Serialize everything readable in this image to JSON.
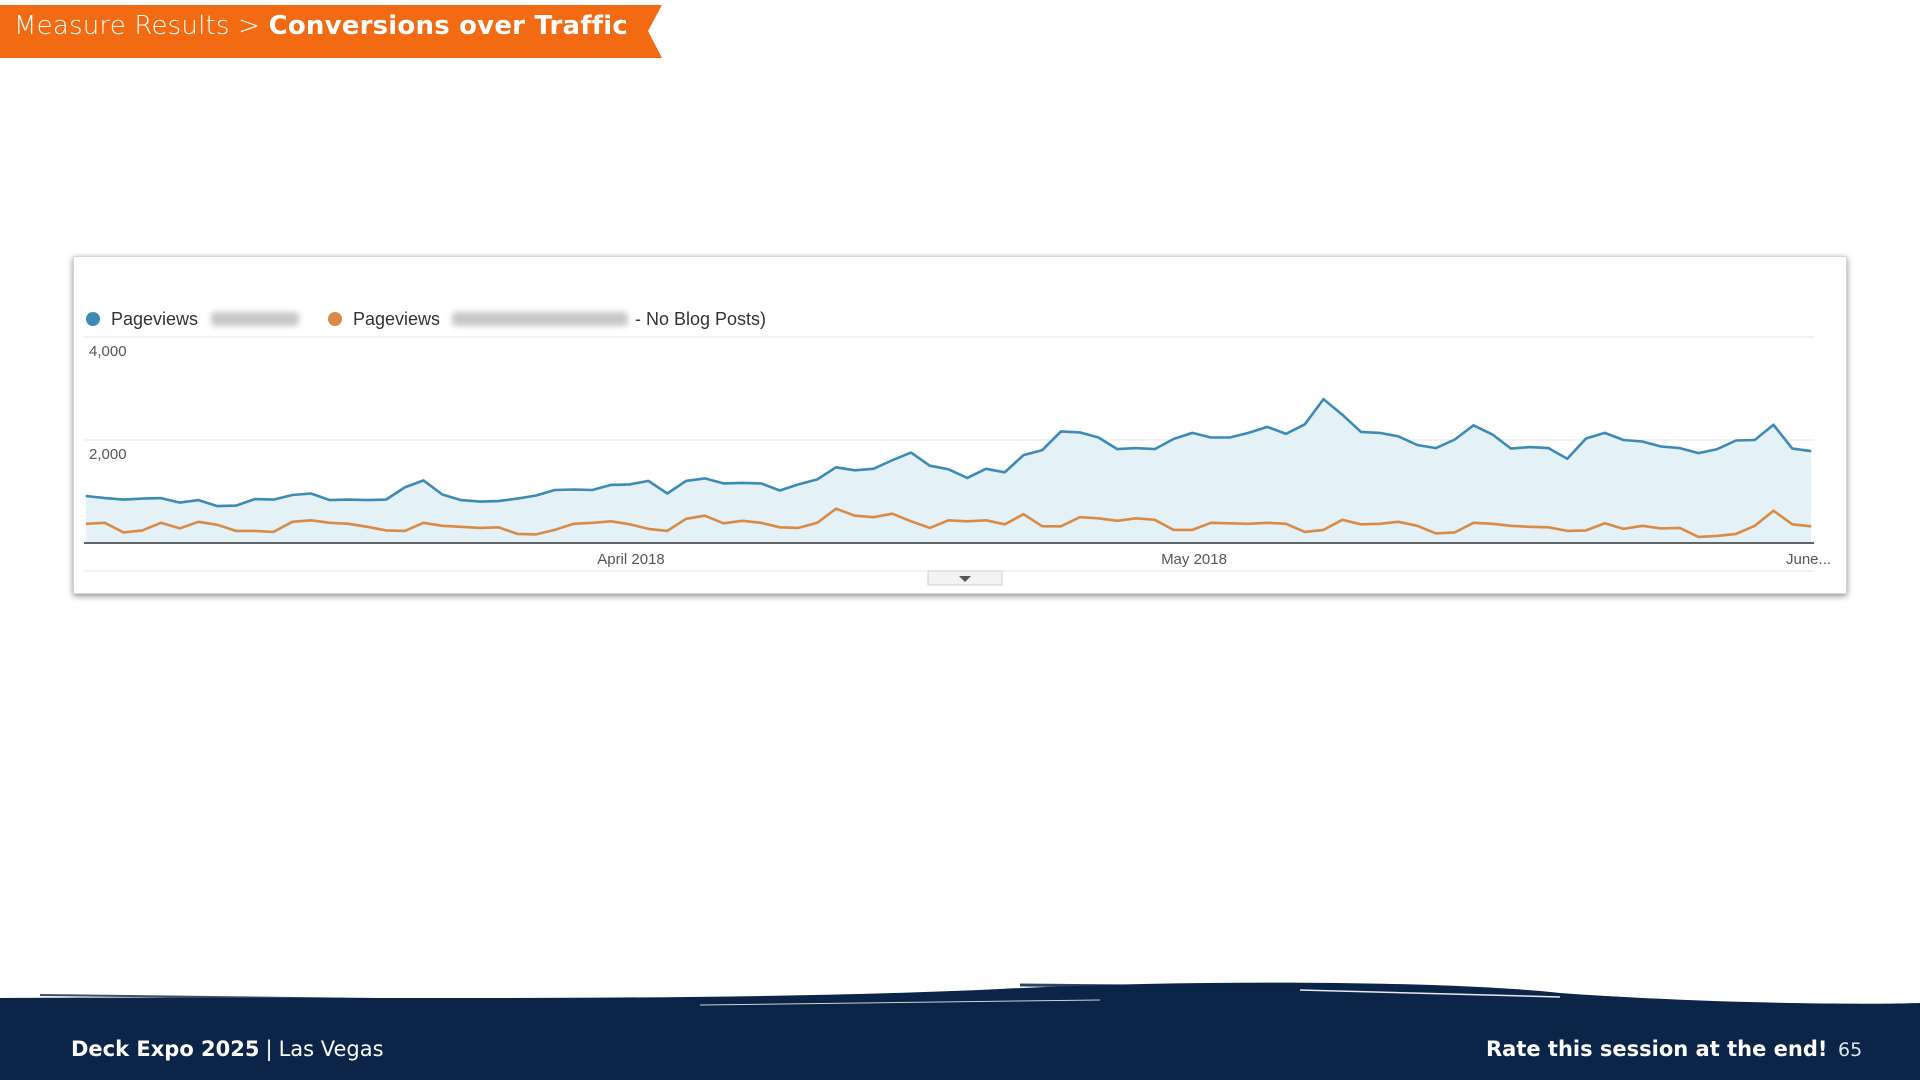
{
  "header": {
    "breadcrumb": "Measure Results >",
    "title": "Conversions over Traffic",
    "banner_color": "#f26b12"
  },
  "chart_data": {
    "type": "area",
    "legend": [
      {
        "label": "Pageviews",
        "suffix": "",
        "color": "#3d8ab5"
      },
      {
        "label": "Pageviews",
        "suffix": "- No Blog Posts)",
        "color": "#d98a45"
      }
    ],
    "y_ticks": [
      "4,000",
      "2,000"
    ],
    "x_ticks": [
      "April 2018",
      "May 2018",
      "June..."
    ],
    "ylim": [
      0,
      4000
    ],
    "grid": true,
    "series": [
      {
        "name": "Pageviews",
        "color": "#3d8ab5",
        "fill": "#e4f1f7",
        "values": [
          930,
          890,
          860,
          880,
          890,
          800,
          850,
          730,
          740,
          870,
          860,
          950,
          980,
          850,
          860,
          850,
          860,
          1100,
          1240,
          960,
          850,
          820,
          830,
          880,
          940,
          1050,
          1060,
          1050,
          1150,
          1160,
          1230,
          980,
          1230,
          1280,
          1180,
          1190,
          1180,
          1040,
          1160,
          1260,
          1500,
          1440,
          1470,
          1640,
          1790,
          1530,
          1460,
          1290,
          1470,
          1400,
          1740,
          1840,
          2210,
          2190,
          2090,
          1860,
          1880,
          1860,
          2060,
          2180,
          2090,
          2090,
          2180,
          2300,
          2160,
          2350,
          2850,
          2540,
          2200,
          2180,
          2110,
          1940,
          1880,
          2050,
          2330,
          2150,
          1870,
          1900,
          1880,
          1670,
          2070,
          2180,
          2040,
          2010,
          1910,
          1880,
          1780,
          1860,
          2030,
          2040,
          2340,
          1870,
          1820
        ]
      },
      {
        "name": "Pageviews - No Blog Posts)",
        "color": "#d98a45",
        "values": [
          380,
          400,
          210,
          250,
          400,
          290,
          420,
          360,
          240,
          240,
          220,
          420,
          450,
          400,
          380,
          320,
          250,
          240,
          400,
          340,
          320,
          300,
          310,
          180,
          170,
          260,
          380,
          400,
          430,
          370,
          280,
          240,
          480,
          540,
          390,
          440,
          400,
          310,
          300,
          400,
          680,
          540,
          510,
          580,
          430,
          300,
          450,
          430,
          450,
          370,
          570,
          330,
          330,
          510,
          490,
          440,
          490,
          460,
          260,
          260,
          400,
          390,
          380,
          400,
          380,
          220,
          260,
          460,
          370,
          380,
          420,
          340,
          190,
          210,
          400,
          380,
          340,
          320,
          310,
          240,
          250,
          390,
          280,
          340,
          290,
          300,
          120,
          140,
          180,
          340,
          640,
          370,
          330
        ]
      }
    ]
  },
  "footer": {
    "event": "Deck Expo 2025",
    "separator": "|",
    "location": "Las Vegas",
    "rate_text": "Rate this session at the end!",
    "page_number": "65",
    "background": "#0b2447"
  }
}
